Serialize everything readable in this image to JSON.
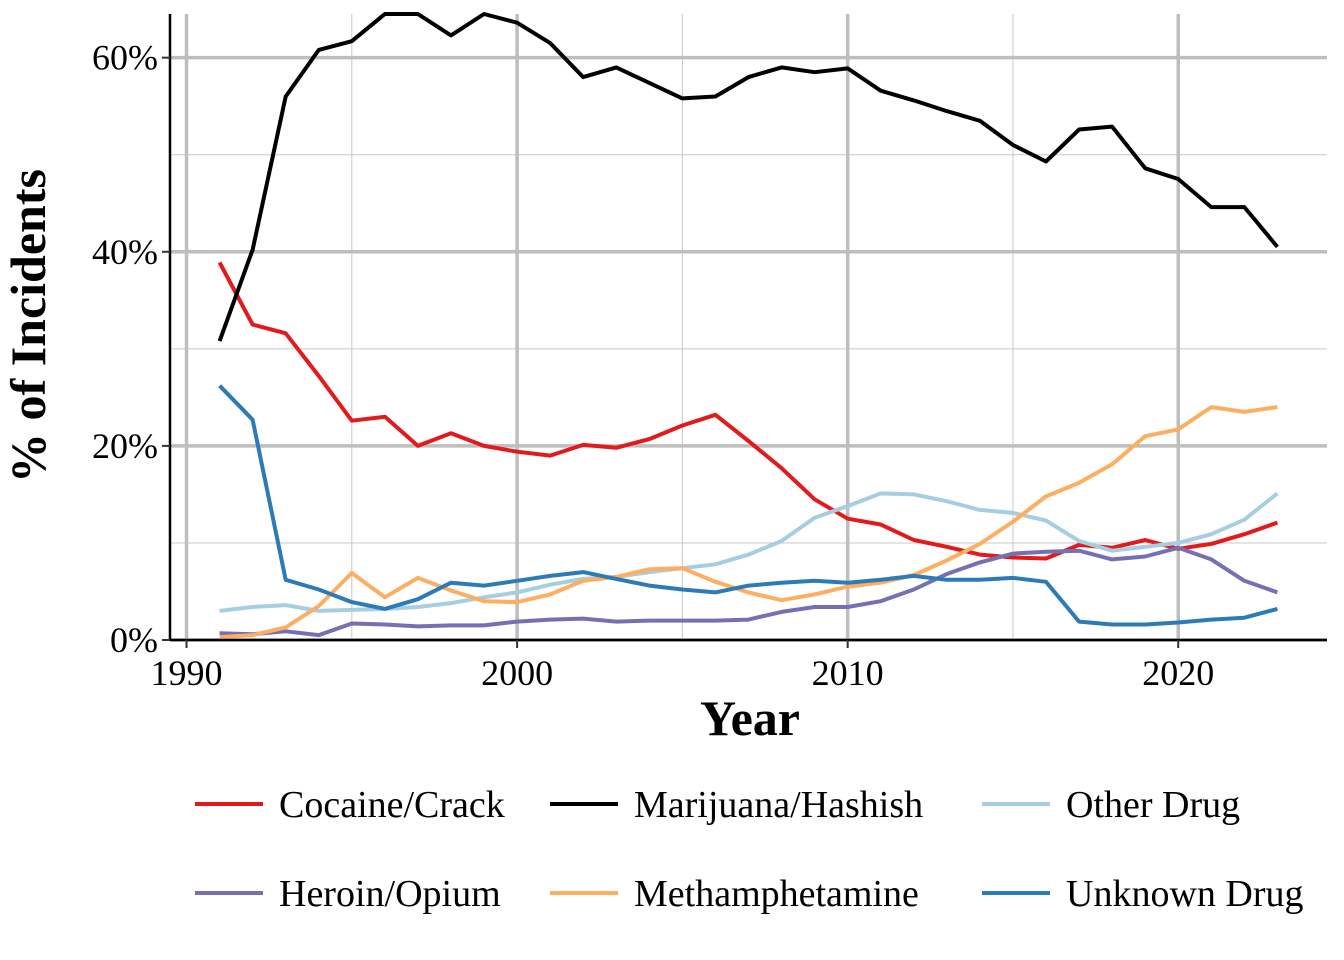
{
  "chart_data": {
    "type": "line",
    "title": "",
    "xlabel": "Year",
    "ylabel": "% of Incidents",
    "xlim": [
      1989.5,
      2024.5
    ],
    "ylim": [
      0,
      64.5
    ],
    "xticks": [
      1990,
      2000,
      2010,
      2020
    ],
    "xtick_labels": [
      "1990",
      "2000",
      "2010",
      "2020"
    ],
    "yticks": [
      0,
      20,
      40,
      60
    ],
    "ytick_labels": [
      "0%",
      "20%",
      "40%",
      "60%"
    ],
    "grid": true,
    "legend_position": "bottom",
    "x": [
      1991,
      1992,
      1993,
      1994,
      1995,
      1996,
      1997,
      1998,
      1999,
      2000,
      2001,
      2002,
      2003,
      2004,
      2005,
      2006,
      2007,
      2008,
      2009,
      2010,
      2011,
      2012,
      2013,
      2014,
      2015,
      2016,
      2017,
      2018,
      2019,
      2020,
      2021,
      2022,
      2023
    ],
    "series": [
      {
        "name": "Cocaine/Crack",
        "color": "#e31a1c",
        "values": [
          38.9,
          32.5,
          31.6,
          27.2,
          22.6,
          23,
          20,
          21.3,
          20,
          19.4,
          19,
          20.1,
          19.8,
          20.7,
          22.1,
          23.2,
          20.5,
          17.7,
          14.5,
          12.5,
          11.9,
          10.3,
          9.6,
          8.8,
          8.5,
          8.4,
          9.8,
          9.5,
          10.3,
          9.4,
          9.9,
          10.9,
          12.1
        ]
      },
      {
        "name": "Marijuana/Hashish",
        "color": "#000000",
        "values": [
          30.8,
          40.2,
          56,
          60.8,
          61.7,
          64.5,
          64.5,
          62.3,
          64.5,
          63.6,
          61.5,
          58,
          59,
          57.4,
          55.8,
          56,
          58,
          59,
          58.5,
          58.9,
          56.6,
          55.6,
          54.5,
          53.5,
          51,
          49.3,
          52.6,
          52.9,
          48.6,
          47.5,
          44.6,
          44.6,
          40.5
        ]
      },
      {
        "name": "Other Drug",
        "color": "#a6cee3",
        "values": [
          3,
          3.4,
          3.6,
          3,
          3.1,
          3.2,
          3.4,
          3.8,
          4.4,
          4.9,
          5.7,
          6.3,
          6.5,
          7,
          7.4,
          7.8,
          8.8,
          10.2,
          12.6,
          13.8,
          15.1,
          15,
          14.3,
          13.4,
          13.1,
          12.3,
          10.2,
          9.2,
          9.6,
          10,
          10.9,
          12.4,
          15.1
        ]
      },
      {
        "name": "Heroin/Opium",
        "color": "#7570b3",
        "values": [
          0.7,
          0.6,
          0.9,
          0.5,
          1.7,
          1.6,
          1.4,
          1.5,
          1.5,
          1.9,
          2.1,
          2.2,
          1.9,
          2,
          2,
          2,
          2.1,
          2.9,
          3.4,
          3.4,
          4,
          5.2,
          6.8,
          8,
          8.9,
          9.1,
          9.2,
          8.3,
          8.6,
          9.5,
          8.3,
          6.1,
          4.9
        ]
      },
      {
        "name": "Methamphetamine",
        "color": "#fdae61",
        "values": [
          0.3,
          0.5,
          1.3,
          3.5,
          6.9,
          4.4,
          6.4,
          5.1,
          4,
          3.9,
          4.7,
          6.1,
          6.5,
          7.3,
          7.4,
          6,
          4.9,
          4.1,
          4.7,
          5.5,
          5.9,
          6.7,
          8.2,
          9.9,
          12.2,
          14.8,
          16.2,
          18.1,
          21,
          21.7,
          24,
          23.5,
          24
        ]
      },
      {
        "name": "Unknown Drug",
        "color": "#2c7bb6",
        "values": [
          26.2,
          22.7,
          6.2,
          5.2,
          3.9,
          3.2,
          4.2,
          5.9,
          5.6,
          6.1,
          6.6,
          7,
          6.3,
          5.6,
          5.2,
          4.9,
          5.6,
          5.9,
          6.1,
          5.9,
          6.2,
          6.6,
          6.2,
          6.2,
          6.4,
          6,
          1.9,
          1.6,
          1.6,
          1.8,
          2.1,
          2.3,
          3.2
        ]
      }
    ],
    "legend_order": [
      "Cocaine/Crack",
      "Marijuana/Hashish",
      "Other Drug",
      "Heroin/Opium",
      "Methamphetamine",
      "Unknown Drug"
    ]
  }
}
